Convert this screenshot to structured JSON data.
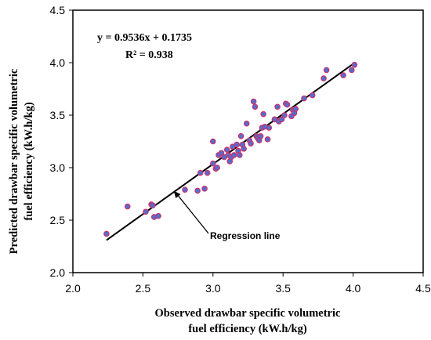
{
  "chart_data": {
    "type": "scatter",
    "xlabel_lines": [
      "Observed drawbar specific volumetric",
      "fuel efficiency (kW.h/kg)"
    ],
    "ylabel_lines": [
      "Predicted drawbar specific volumetric",
      "fuel efficiency (kW.h/kg)"
    ],
    "xlim": [
      2.0,
      4.5
    ],
    "ylim": [
      2.0,
      4.5
    ],
    "xticks": [
      "2.0",
      "2.5",
      "3.0",
      "3.5",
      "4.0",
      "4.5"
    ],
    "yticks": [
      "2.0",
      "2.5",
      "3.0",
      "3.5",
      "4.0",
      "4.5"
    ],
    "grid": false,
    "marker_colors": {
      "fill": "#4f6fcf",
      "edge": "#d0306a"
    },
    "line_color": "#000000",
    "equation": "y = 0.9536x + 0.1735",
    "r_squared": "R² = 0.938",
    "annotation": "Regression line",
    "trendline": {
      "slope": 0.9536,
      "intercept": 0.1735,
      "x_range": [
        2.24,
        4.01
      ]
    },
    "annotation_target": [
      2.72,
      2.78
    ],
    "points": [
      [
        2.24,
        2.37
      ],
      [
        2.39,
        2.63
      ],
      [
        2.52,
        2.58
      ],
      [
        2.56,
        2.65
      ],
      [
        2.57,
        2.64
      ],
      [
        2.58,
        2.53
      ],
      [
        2.61,
        2.54
      ],
      [
        2.8,
        2.79
      ],
      [
        2.89,
        2.78
      ],
      [
        2.91,
        2.95
      ],
      [
        2.94,
        2.8
      ],
      [
        2.96,
        2.95
      ],
      [
        3.0,
        3.25
      ],
      [
        3.0,
        3.04
      ],
      [
        3.02,
        2.99
      ],
      [
        3.03,
        3.0
      ],
      [
        3.04,
        3.12
      ],
      [
        3.06,
        3.14
      ],
      [
        3.08,
        3.1
      ],
      [
        3.1,
        3.17
      ],
      [
        3.11,
        3.12
      ],
      [
        3.12,
        3.06
      ],
      [
        3.13,
        3.1
      ],
      [
        3.14,
        3.2
      ],
      [
        3.15,
        3.12
      ],
      [
        3.17,
        3.22
      ],
      [
        3.18,
        3.16
      ],
      [
        3.19,
        3.12
      ],
      [
        3.2,
        3.3
      ],
      [
        3.21,
        3.22
      ],
      [
        3.22,
        3.18
      ],
      [
        3.24,
        3.42
      ],
      [
        3.26,
        3.26
      ],
      [
        3.27,
        3.23
      ],
      [
        3.29,
        3.63
      ],
      [
        3.3,
        3.58
      ],
      [
        3.31,
        3.3
      ],
      [
        3.32,
        3.28
      ],
      [
        3.33,
        3.26
      ],
      [
        3.34,
        3.3
      ],
      [
        3.35,
        3.38
      ],
      [
        3.36,
        3.51
      ],
      [
        3.37,
        3.39
      ],
      [
        3.39,
        3.27
      ],
      [
        3.4,
        3.38
      ],
      [
        3.44,
        3.46
      ],
      [
        3.46,
        3.58
      ],
      [
        3.47,
        3.44
      ],
      [
        3.49,
        3.46
      ],
      [
        3.51,
        3.5
      ],
      [
        3.52,
        3.61
      ],
      [
        3.53,
        3.6
      ],
      [
        3.56,
        3.49
      ],
      [
        3.57,
        3.55
      ],
      [
        3.58,
        3.52
      ],
      [
        3.59,
        3.56
      ],
      [
        3.65,
        3.66
      ],
      [
        3.71,
        3.69
      ],
      [
        3.79,
        3.85
      ],
      [
        3.81,
        3.93
      ],
      [
        3.93,
        3.88
      ],
      [
        3.99,
        3.93
      ],
      [
        4.01,
        3.98
      ]
    ]
  }
}
